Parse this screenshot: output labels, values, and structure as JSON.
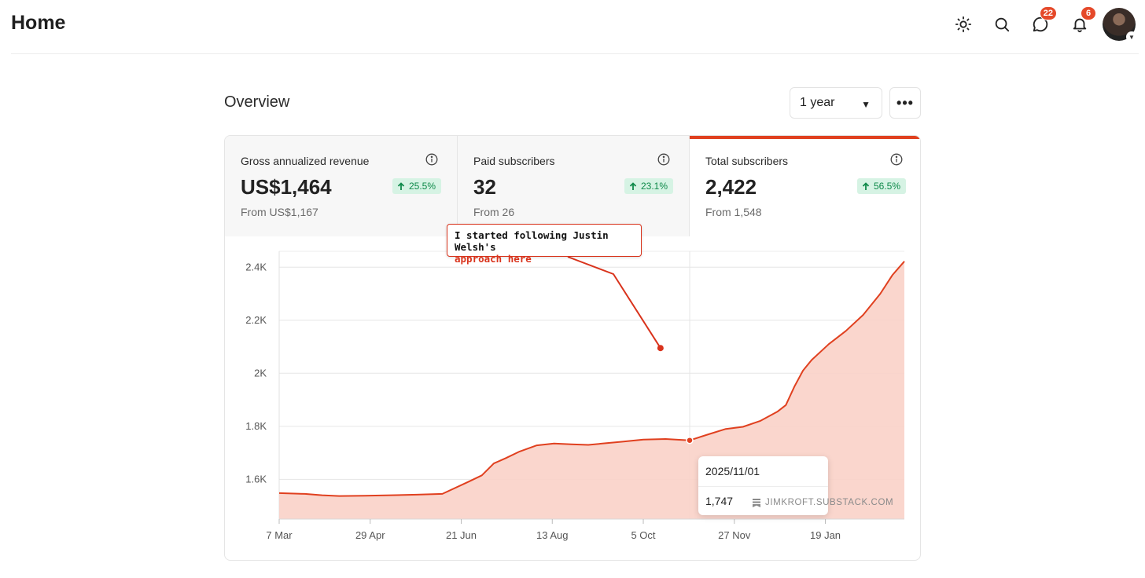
{
  "header": {
    "title": "Home",
    "icons": [
      "sun-icon",
      "search-icon",
      "chat-icon",
      "bell-icon"
    ],
    "messages_badge": "22",
    "notifications_badge": "6"
  },
  "overview": {
    "title": "Overview",
    "range_value": "1 year",
    "more_label": "•••"
  },
  "stats": [
    {
      "label": "Gross annualized revenue",
      "value": "US$1,464",
      "change": "25.5%",
      "from": "From US$1,167",
      "active": false
    },
    {
      "label": "Paid subscribers",
      "value": "32",
      "change": "23.1%",
      "from": "From 26",
      "active": false
    },
    {
      "label": "Total subscribers",
      "value": "2,422",
      "change": "56.5%",
      "from": "From 1,548",
      "active": true
    }
  ],
  "colors": {
    "accent": "#e0401f",
    "area_fill": "#fad2c8",
    "change_bg": "#d6f3e4",
    "change_text": "#0f8a4a"
  },
  "annotation": {
    "line1": "I started following Justin Welsh's",
    "line2": "approach here"
  },
  "tooltip": {
    "date": "2025/11/01",
    "value": "1,747",
    "watermark": "JIMKROFT.SUBSTACK.COM"
  },
  "chart_data": {
    "type": "area",
    "title": "",
    "xlabel": "",
    "ylabel": "",
    "x_tick_labels": [
      "7 Mar",
      "29 Apr",
      "21 Jun",
      "13 Aug",
      "5 Oct",
      "27 Nov",
      "19 Jan"
    ],
    "x_tick_days": [
      0,
      53,
      106,
      159,
      212,
      265,
      318
    ],
    "y_ticks": [
      1600,
      1800,
      2000,
      2200,
      2400
    ],
    "y_tick_labels": [
      "1.6K",
      "1.8K",
      "2K",
      "2.2K",
      "2.4K"
    ],
    "ylim": [
      1450,
      2460
    ],
    "xlim_days": [
      0,
      364
    ],
    "grid": true,
    "series": [
      {
        "x_days": [
          0,
          15,
          25,
          35,
          50,
          65,
          80,
          95,
          110,
          118,
          125,
          132,
          140,
          150,
          160,
          170,
          180,
          190,
          200,
          212,
          225,
          239,
          250,
          260,
          270,
          280,
          290,
          295,
          300,
          305,
          310,
          315,
          320,
          330,
          340,
          350,
          357,
          364
        ],
        "values": [
          1548,
          1545,
          1540,
          1537,
          1538,
          1540,
          1542,
          1545,
          1590,
          1615,
          1660,
          1680,
          1705,
          1728,
          1735,
          1732,
          1730,
          1736,
          1742,
          1750,
          1752,
          1747,
          1770,
          1790,
          1798,
          1820,
          1855,
          1880,
          1950,
          2010,
          2050,
          2080,
          2110,
          2160,
          2220,
          2300,
          2370,
          2422
        ]
      }
    ],
    "highlight_point": {
      "date": "2025/11/01",
      "x_day": 239,
      "value": 1747
    },
    "annotation_point": {
      "x_day": 222,
      "value": 2095
    }
  }
}
